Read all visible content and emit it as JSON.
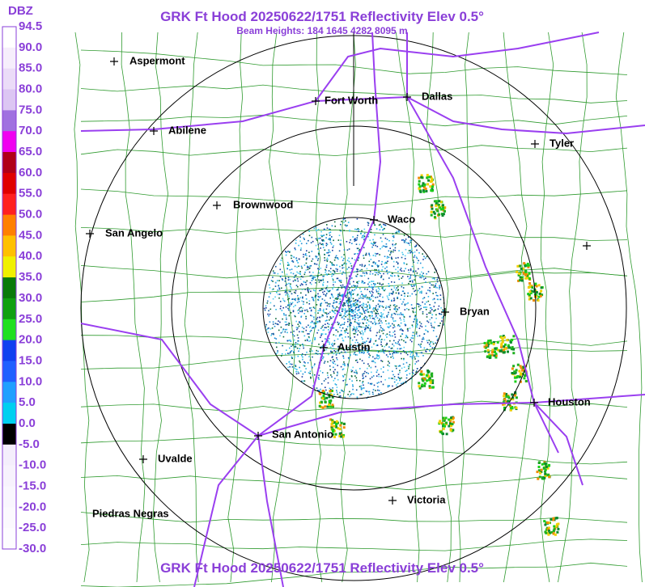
{
  "header": {
    "title": "GRK Ft Hood 20250622/1751 Reflectivity Elev 0.5°",
    "subtitle": "Beam Heights: 184 1645 4282 8095 m"
  },
  "footer": {
    "title": "GRK Ft Hood 20250622/1751 Reflectivity Elev 0.5°"
  },
  "legend": {
    "unit": "DBZ",
    "labels": [
      "94.5",
      "90.0",
      "85.0",
      "80.0",
      "75.0",
      "70.0",
      "65.0",
      "60.0",
      "55.0",
      "50.0",
      "45.0",
      "40.0",
      "35.0",
      "30.0",
      "25.0",
      "20.0",
      "15.0",
      "10.0",
      "5.0",
      "0.0",
      "-5.0",
      "-10.0",
      "-15.0",
      "-20.0",
      "-25.0",
      "-30.0"
    ]
  },
  "cities": [
    "Aspermont",
    "Fort Worth",
    "Dallas",
    "Abilene",
    "Tyler",
    "Brownwood",
    "Waco",
    "San Angelo",
    "Bryan",
    "Austin",
    "Houston",
    "San Antonio",
    "Uvalde",
    "Victoria",
    "Piedras Negras"
  ]
}
